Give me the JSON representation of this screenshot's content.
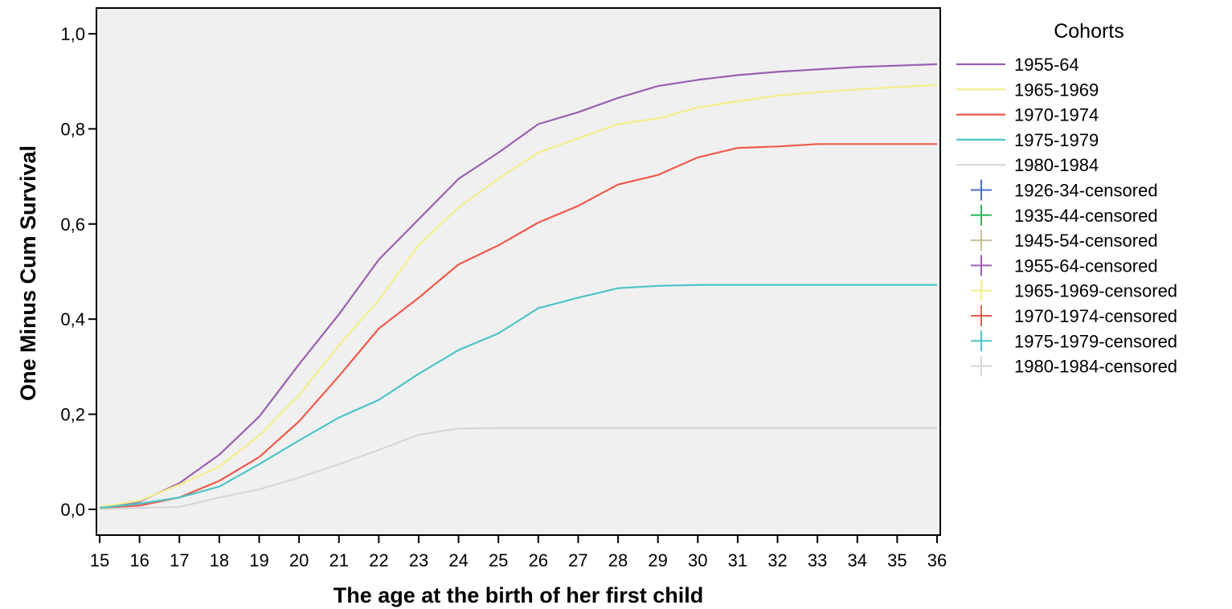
{
  "chart_data": {
    "type": "line",
    "title": "",
    "xlabel": "The age at the birth of her first child",
    "ylabel": "One Minus Cum Survival",
    "xlim": [
      15,
      36
    ],
    "ylim": [
      0,
      1
    ],
    "x_ticks": [
      15,
      16,
      17,
      18,
      19,
      20,
      21,
      22,
      23,
      24,
      25,
      26,
      27,
      28,
      29,
      30,
      31,
      32,
      33,
      34,
      35,
      36
    ],
    "y_ticks": [
      0.0,
      0.2,
      0.4,
      0.6,
      0.8,
      1.0
    ],
    "y_tick_labels": [
      "0,0",
      "0,2",
      "0,4",
      "0,6",
      "0,8",
      "1,0"
    ],
    "grid": false,
    "plot_background": "#f0f0f0",
    "legend_placement": "right",
    "legend_title": "Cohorts",
    "x": [
      15,
      16,
      17,
      18,
      19,
      20,
      21,
      22,
      23,
      24,
      25,
      26,
      27,
      28,
      29,
      30,
      31,
      32,
      33,
      34,
      35,
      36
    ],
    "series": [
      {
        "name": "1955-64",
        "color": "#9a5fb0",
        "values": [
          0.005,
          0.016,
          0.055,
          0.115,
          0.195,
          0.305,
          0.41,
          0.525,
          0.61,
          0.695,
          0.75,
          0.81,
          0.835,
          0.865,
          0.89,
          0.903,
          0.913,
          0.92,
          0.925,
          0.93,
          0.933,
          0.936
        ]
      },
      {
        "name": "1965-1969",
        "color": "#f4ee8a",
        "values": [
          0.005,
          0.018,
          0.052,
          0.09,
          0.155,
          0.24,
          0.345,
          0.44,
          0.555,
          0.635,
          0.695,
          0.75,
          0.78,
          0.81,
          0.822,
          0.845,
          0.858,
          0.87,
          0.877,
          0.883,
          0.888,
          0.892
        ]
      },
      {
        "name": "1970-1974",
        "color": "#f05a4c",
        "values": [
          0.003,
          0.008,
          0.025,
          0.06,
          0.11,
          0.185,
          0.28,
          0.38,
          0.445,
          0.515,
          0.555,
          0.603,
          0.638,
          0.683,
          0.703,
          0.74,
          0.76,
          0.763,
          0.768,
          0.768,
          0.768,
          0.768
        ]
      },
      {
        "name": "1975-1979",
        "color": "#4cc4c8",
        "values": [
          0.003,
          0.012,
          0.025,
          0.048,
          0.095,
          0.145,
          0.193,
          0.23,
          0.285,
          0.335,
          0.37,
          0.423,
          0.445,
          0.465,
          0.47,
          0.472,
          0.472,
          0.472,
          0.472,
          0.472,
          0.472,
          0.472
        ]
      },
      {
        "name": "1980-1984",
        "color": "#d6d6d6",
        "values": [
          0.0,
          0.003,
          0.005,
          0.025,
          0.042,
          0.067,
          0.095,
          0.125,
          0.157,
          0.17,
          0.171,
          0.171,
          0.171,
          0.171,
          0.171,
          0.171,
          0.171,
          0.171,
          0.171,
          0.171,
          0.171,
          0.171
        ]
      }
    ],
    "legend_entries": [
      {
        "label": "1955-64",
        "marker": "line",
        "color": "#9a5fb0"
      },
      {
        "label": "1965-1969",
        "marker": "line",
        "color": "#f4ee8a"
      },
      {
        "label": "1970-1974",
        "marker": "line",
        "color": "#f05a4c"
      },
      {
        "label": "1975-1979",
        "marker": "line",
        "color": "#4cc4c8"
      },
      {
        "label": "1980-1984",
        "marker": "line",
        "color": "#d6d6d6"
      },
      {
        "label": "1926-34-censored",
        "marker": "plus",
        "color": "#4a6fc8"
      },
      {
        "label": "1935-44-censored",
        "marker": "plus",
        "color": "#2db55a"
      },
      {
        "label": "1945-54-censored",
        "marker": "plus",
        "color": "#c8c09a"
      },
      {
        "label": "1955-64-censored",
        "marker": "plus",
        "color": "#9a5fb0"
      },
      {
        "label": "1965-1969-censored",
        "marker": "plus",
        "color": "#f4ee8a"
      },
      {
        "label": "1970-1974-censored",
        "marker": "plus",
        "color": "#f05a4c"
      },
      {
        "label": "1975-1979-censored",
        "marker": "plus",
        "color": "#4cc4c8"
      },
      {
        "label": "1980-1984-censored",
        "marker": "plus",
        "color": "#d6d6d6"
      }
    ]
  }
}
